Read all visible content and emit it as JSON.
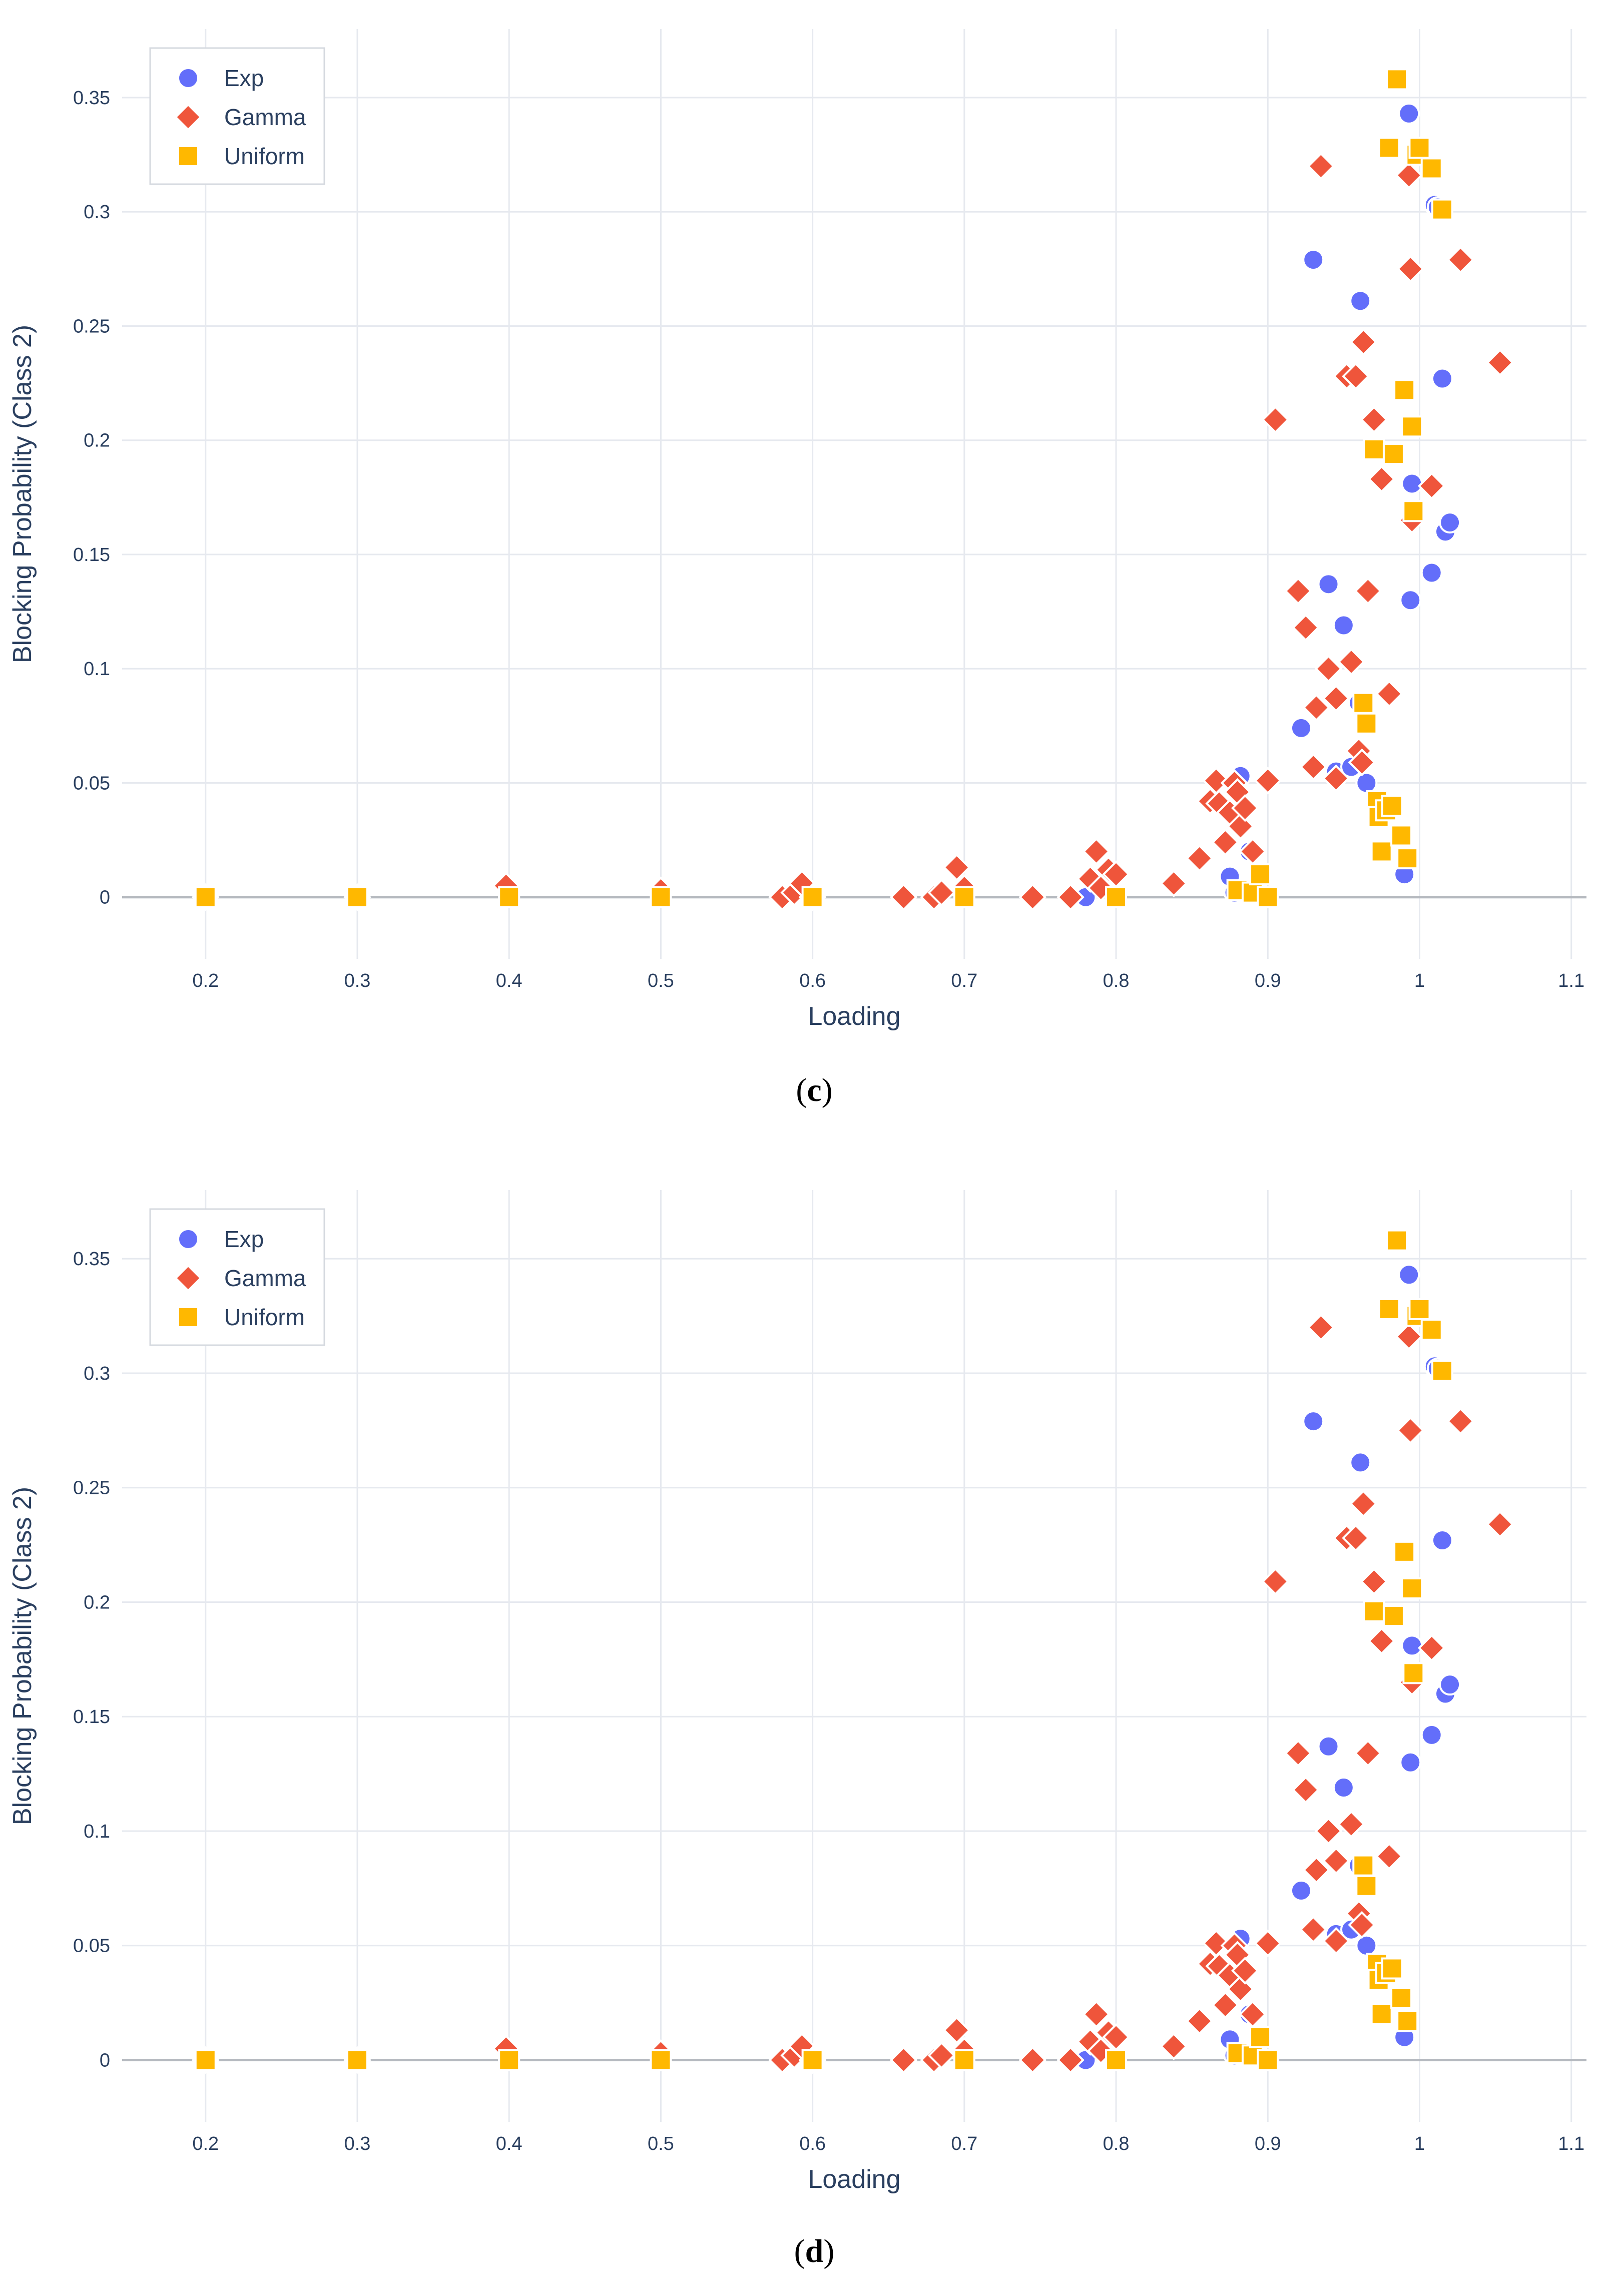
{
  "colors": {
    "exp": "#636efa",
    "gamma": "#ef553b",
    "uniform": "#ffb800",
    "grid": "#e6e9ef",
    "zeroline": "#b5b9bf"
  },
  "chart_data": [
    {
      "type": "scatter",
      "caption": "(c)",
      "caption_open": "(",
      "caption_letter": "c",
      "caption_close": ")",
      "xlabel": "Loading",
      "ylabel": "Blocking Probability (Class 2)",
      "xlim": [
        0.145,
        1.11
      ],
      "ylim": [
        -0.027,
        0.38
      ],
      "xticks": [
        0.2,
        0.3,
        0.4,
        0.5,
        0.6,
        0.7,
        0.8,
        0.9,
        1,
        1.1
      ],
      "xtick_labels": [
        "0.2",
        "0.3",
        "0.4",
        "0.5",
        "0.6",
        "0.7",
        "0.8",
        "0.9",
        "1",
        "1.1"
      ],
      "yticks": [
        0,
        0.05,
        0.1,
        0.15,
        0.2,
        0.25,
        0.3,
        0.35
      ],
      "ytick_labels": [
        "0",
        "0.05",
        "0.1",
        "0.15",
        "0.2",
        "0.25",
        "0.3",
        "0.35"
      ],
      "legend_position": "top-left",
      "series": [
        {
          "name": "Exp",
          "marker": "circle",
          "color": "#636efa",
          "x": [
            0.2,
            0.3,
            0.4,
            0.5,
            0.6,
            0.7,
            0.78,
            0.8,
            0.875,
            0.878,
            0.882,
            0.888,
            0.922,
            0.93,
            0.94,
            0.945,
            0.95,
            0.955,
            0.96,
            0.961,
            0.965,
            0.99,
            0.993,
            0.994,
            0.995,
            1.008,
            1.01,
            1.012,
            1.015,
            1.017,
            1.02
          ],
          "y": [
            0,
            0,
            0,
            0,
            0,
            0,
            0,
            0,
            0.009,
            0.002,
            0.053,
            0.02,
            0.074,
            0.279,
            0.137,
            0.055,
            0.119,
            0.057,
            0.085,
            0.261,
            0.05,
            0.01,
            0.343,
            0.13,
            0.181,
            0.142,
            0.303,
            0.302,
            0.227,
            0.16,
            0.164
          ]
        },
        {
          "name": "Gamma",
          "marker": "diamond",
          "color": "#ef553b",
          "x": [
            0.2,
            0.3,
            0.398,
            0.5,
            0.58,
            0.588,
            0.593,
            0.6,
            0.66,
            0.68,
            0.685,
            0.695,
            0.7,
            0.745,
            0.77,
            0.783,
            0.787,
            0.79,
            0.795,
            0.8,
            0.838,
            0.855,
            0.862,
            0.866,
            0.868,
            0.872,
            0.875,
            0.878,
            0.88,
            0.882,
            0.885,
            0.89,
            0.9,
            0.905,
            0.92,
            0.925,
            0.93,
            0.932,
            0.935,
            0.94,
            0.945,
            0.945,
            0.952,
            0.955,
            0.958,
            0.96,
            0.962,
            0.963,
            0.966,
            0.97,
            0.975,
            0.98,
            0.993,
            0.994,
            0.995,
            1.008,
            1.027,
            1.053
          ],
          "y": [
            0,
            0,
            0.005,
            0.003,
            0,
            0.002,
            0.006,
            0,
            0,
            0,
            0.002,
            0.013,
            0.004,
            0,
            0,
            0.008,
            0.02,
            0.004,
            0.012,
            0.01,
            0.006,
            0.017,
            0.042,
            0.051,
            0.041,
            0.024,
            0.037,
            0.05,
            0.046,
            0.031,
            0.039,
            0.02,
            0.051,
            0.209,
            0.134,
            0.118,
            0.057,
            0.083,
            0.32,
            0.1,
            0.087,
            0.052,
            0.228,
            0.103,
            0.228,
            0.064,
            0.059,
            0.243,
            0.134,
            0.209,
            0.183,
            0.089,
            0.316,
            0.275,
            0.165,
            0.18,
            0.279,
            0.234
          ]
        },
        {
          "name": "Uniform",
          "marker": "square",
          "color": "#ffb800",
          "x": [
            0.2,
            0.3,
            0.4,
            0.5,
            0.6,
            0.7,
            0.8,
            0.88,
            0.89,
            0.895,
            0.9,
            0.963,
            0.965,
            0.97,
            0.972,
            0.973,
            0.975,
            0.978,
            0.98,
            0.982,
            0.983,
            0.985,
            0.988,
            0.99,
            0.992,
            0.995,
            0.996,
            0.998,
            1.0,
            1.008,
            1.015
          ],
          "y": [
            0,
            0,
            0,
            0,
            0,
            0,
            0,
            0.003,
            0.002,
            0.01,
            0,
            0.085,
            0.076,
            0.196,
            0.042,
            0.035,
            0.02,
            0.038,
            0.328,
            0.04,
            0.194,
            0.358,
            0.027,
            0.222,
            0.017,
            0.206,
            0.169,
            0.325,
            0.328,
            0.319,
            0.301
          ]
        }
      ]
    },
    {
      "type": "scatter",
      "caption": "(d)",
      "caption_open": "(",
      "caption_letter": "d",
      "caption_close": ")",
      "xlabel": "Loading",
      "ylabel": "Blocking Probability (Class 2)",
      "xlim": [
        0.145,
        1.11
      ],
      "ylim": [
        -0.027,
        0.38
      ],
      "xticks": [
        0.2,
        0.3,
        0.4,
        0.5,
        0.6,
        0.7,
        0.8,
        0.9,
        1,
        1.1
      ],
      "xtick_labels": [
        "0.2",
        "0.3",
        "0.4",
        "0.5",
        "0.6",
        "0.7",
        "0.8",
        "0.9",
        "1",
        "1.1"
      ],
      "yticks": [
        0,
        0.05,
        0.1,
        0.15,
        0.2,
        0.25,
        0.3,
        0.35
      ],
      "ytick_labels": [
        "0",
        "0.05",
        "0.1",
        "0.15",
        "0.2",
        "0.25",
        "0.3",
        "0.35"
      ],
      "legend_position": "top-left",
      "series": [
        {
          "name": "Exp",
          "marker": "circle",
          "color": "#636efa",
          "x": [
            0.2,
            0.3,
            0.4,
            0.5,
            0.6,
            0.7,
            0.78,
            0.8,
            0.875,
            0.878,
            0.882,
            0.888,
            0.922,
            0.93,
            0.94,
            0.945,
            0.95,
            0.955,
            0.96,
            0.961,
            0.965,
            0.99,
            0.993,
            0.994,
            0.995,
            1.008,
            1.01,
            1.012,
            1.015,
            1.017,
            1.02
          ],
          "y": [
            0,
            0,
            0,
            0,
            0,
            0,
            0,
            0,
            0.009,
            0.002,
            0.053,
            0.02,
            0.074,
            0.279,
            0.137,
            0.055,
            0.119,
            0.057,
            0.085,
            0.261,
            0.05,
            0.01,
            0.343,
            0.13,
            0.181,
            0.142,
            0.303,
            0.302,
            0.227,
            0.16,
            0.164
          ]
        },
        {
          "name": "Gamma",
          "marker": "diamond",
          "color": "#ef553b",
          "x": [
            0.2,
            0.3,
            0.398,
            0.5,
            0.58,
            0.588,
            0.593,
            0.6,
            0.66,
            0.68,
            0.685,
            0.695,
            0.7,
            0.745,
            0.77,
            0.783,
            0.787,
            0.79,
            0.795,
            0.8,
            0.838,
            0.855,
            0.862,
            0.866,
            0.868,
            0.872,
            0.875,
            0.878,
            0.88,
            0.882,
            0.885,
            0.89,
            0.9,
            0.905,
            0.92,
            0.925,
            0.93,
            0.932,
            0.935,
            0.94,
            0.945,
            0.945,
            0.952,
            0.955,
            0.958,
            0.96,
            0.962,
            0.963,
            0.966,
            0.97,
            0.975,
            0.98,
            0.993,
            0.994,
            0.995,
            1.008,
            1.027,
            1.053
          ],
          "y": [
            0,
            0,
            0.005,
            0.003,
            0,
            0.002,
            0.006,
            0,
            0,
            0,
            0.002,
            0.013,
            0.004,
            0,
            0,
            0.008,
            0.02,
            0.004,
            0.012,
            0.01,
            0.006,
            0.017,
            0.042,
            0.051,
            0.041,
            0.024,
            0.037,
            0.05,
            0.046,
            0.031,
            0.039,
            0.02,
            0.051,
            0.209,
            0.134,
            0.118,
            0.057,
            0.083,
            0.32,
            0.1,
            0.087,
            0.052,
            0.228,
            0.103,
            0.228,
            0.064,
            0.059,
            0.243,
            0.134,
            0.209,
            0.183,
            0.089,
            0.316,
            0.275,
            0.165,
            0.18,
            0.279,
            0.234
          ]
        },
        {
          "name": "Uniform",
          "marker": "square",
          "color": "#ffb800",
          "x": [
            0.2,
            0.3,
            0.4,
            0.5,
            0.6,
            0.7,
            0.8,
            0.88,
            0.89,
            0.895,
            0.9,
            0.963,
            0.965,
            0.97,
            0.972,
            0.973,
            0.975,
            0.978,
            0.98,
            0.982,
            0.983,
            0.985,
            0.988,
            0.99,
            0.992,
            0.995,
            0.996,
            0.998,
            1.0,
            1.008,
            1.015
          ],
          "y": [
            0,
            0,
            0,
            0,
            0,
            0,
            0,
            0.003,
            0.002,
            0.01,
            0,
            0.085,
            0.076,
            0.196,
            0.042,
            0.035,
            0.02,
            0.038,
            0.328,
            0.04,
            0.194,
            0.358,
            0.027,
            0.222,
            0.017,
            0.206,
            0.169,
            0.325,
            0.328,
            0.319,
            0.301
          ]
        }
      ]
    }
  ]
}
